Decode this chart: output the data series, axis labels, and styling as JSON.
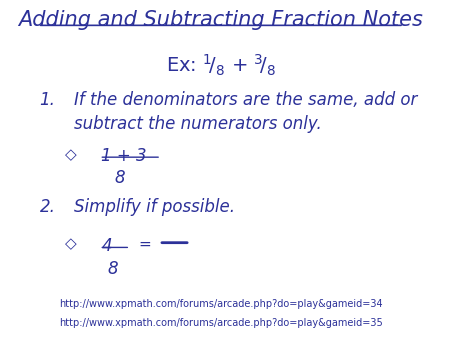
{
  "bg_color": "#ffffff",
  "text_color": "#2c3199",
  "title": "Adding and Subtracting Fraction Notes",
  "url1": "http://www.xpmath.com/forums/arcade.php?do=play&gameid=34",
  "url2": "http://www.xpmath.com/forums/arcade.php?do=play&gameid=35",
  "font_family": "DejaVu Sans",
  "title_fontsize": 15,
  "example_fontsize": 14,
  "body_fontsize": 12,
  "url_fontsize": 7.0,
  "diamond": "◇"
}
